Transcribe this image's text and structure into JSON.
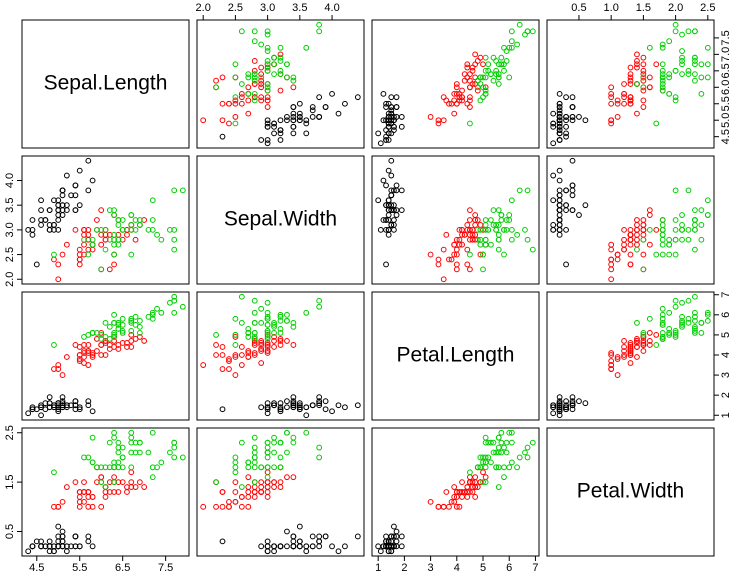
{
  "chart_data": {
    "type": "scatter-matrix",
    "variables": [
      {
        "name": "Sepal.Length",
        "lim": [
          4.156,
          8.044
        ],
        "xticks": [
          4.5,
          5.5,
          6.5,
          7.5
        ],
        "yticks": [
          4.5,
          {
            "value": 5,
            "label": "5.0"
          },
          5.5,
          {
            "value": 6,
            "label": "6.0"
          },
          6.5,
          {
            "value": 7,
            "label": "7.0"
          },
          7.5
        ]
      },
      {
        "name": "Sepal.Width",
        "lim": [
          1.904,
          4.496
        ],
        "xticks": [
          {
            "value": 2,
            "label": "2.0"
          },
          2.5,
          {
            "value": 3,
            "label": "3.0"
          },
          3.5,
          {
            "value": 4,
            "label": "4.0"
          }
        ],
        "yticks": [
          {
            "value": 2,
            "label": "2.0"
          },
          2.5,
          {
            "value": 3,
            "label": "3.0"
          },
          3.5,
          {
            "value": 4,
            "label": "4.0"
          }
        ]
      },
      {
        "name": "Petal.Length",
        "lim": [
          0.764,
          7.136
        ],
        "xticks": [
          1,
          2,
          3,
          4,
          5,
          6,
          7
        ],
        "yticks": [
          1,
          2,
          3,
          4,
          5,
          6,
          7
        ]
      },
      {
        "name": "Petal.Width",
        "lim": [
          0.004,
          2.596
        ],
        "xticks": [
          0.5,
          {
            "value": 1,
            "label": "1.0"
          },
          1.5,
          {
            "value": 2,
            "label": "2.0"
          },
          2.5
        ],
        "yticks": [
          0.5,
          1.5,
          2.5
        ]
      }
    ],
    "series": [
      {
        "color": "#000000",
        "values": [
          [
            5.1,
            4.9,
            4.7,
            4.6,
            5.0,
            5.4,
            4.6,
            5.0,
            4.4,
            4.9,
            5.4,
            4.8,
            4.8,
            4.3,
            5.8,
            5.7,
            5.4,
            5.1,
            5.7,
            5.1,
            5.4,
            5.1,
            4.6,
            5.1,
            4.8,
            5.0,
            5.0,
            5.2,
            5.2,
            4.7,
            4.8,
            5.4,
            5.2,
            5.5,
            4.9,
            5.0,
            5.5,
            4.9,
            4.4,
            5.1,
            5.0,
            4.5,
            4.4,
            5.0,
            5.1,
            4.8,
            5.1,
            4.6,
            5.3,
            5.0
          ],
          [
            3.5,
            3.0,
            3.2,
            3.1,
            3.6,
            3.9,
            3.4,
            3.4,
            2.9,
            3.1,
            3.7,
            3.4,
            3.0,
            3.0,
            4.0,
            4.4,
            3.9,
            3.5,
            3.8,
            3.8,
            3.4,
            3.7,
            3.6,
            3.3,
            3.4,
            3.0,
            3.4,
            3.5,
            3.4,
            3.2,
            3.1,
            3.4,
            4.1,
            4.2,
            3.1,
            3.2,
            3.5,
            3.6,
            3.0,
            3.4,
            3.5,
            2.3,
            3.2,
            3.5,
            3.8,
            3.0,
            3.8,
            3.2,
            3.7,
            3.3
          ],
          [
            1.4,
            1.4,
            1.3,
            1.5,
            1.4,
            1.7,
            1.4,
            1.5,
            1.4,
            1.5,
            1.5,
            1.6,
            1.4,
            1.1,
            1.2,
            1.5,
            1.3,
            1.4,
            1.7,
            1.5,
            1.7,
            1.5,
            1.0,
            1.7,
            1.9,
            1.6,
            1.6,
            1.5,
            1.4,
            1.6,
            1.6,
            1.5,
            1.5,
            1.4,
            1.5,
            1.2,
            1.3,
            1.4,
            1.3,
            1.5,
            1.3,
            1.3,
            1.3,
            1.6,
            1.9,
            1.4,
            1.6,
            1.4,
            1.5,
            1.4
          ],
          [
            0.2,
            0.2,
            0.2,
            0.2,
            0.2,
            0.4,
            0.3,
            0.2,
            0.2,
            0.1,
            0.2,
            0.2,
            0.1,
            0.1,
            0.2,
            0.4,
            0.4,
            0.3,
            0.3,
            0.3,
            0.2,
            0.4,
            0.2,
            0.5,
            0.2,
            0.2,
            0.4,
            0.2,
            0.2,
            0.2,
            0.2,
            0.4,
            0.1,
            0.2,
            0.2,
            0.2,
            0.2,
            0.1,
            0.2,
            0.2,
            0.3,
            0.3,
            0.2,
            0.6,
            0.4,
            0.3,
            0.2,
            0.2,
            0.2,
            0.2
          ]
        ]
      },
      {
        "color": "#ff0000",
        "values": [
          [
            7.0,
            6.4,
            6.9,
            5.5,
            6.5,
            5.7,
            6.3,
            4.9,
            6.6,
            5.2,
            5.0,
            5.9,
            6.0,
            6.1,
            5.6,
            6.7,
            5.6,
            5.8,
            6.2,
            5.6,
            5.9,
            6.1,
            6.3,
            6.1,
            6.4,
            6.6,
            6.8,
            6.7,
            6.0,
            5.7,
            5.5,
            5.5,
            5.8,
            6.0,
            5.4,
            6.0,
            6.7,
            6.3,
            5.6,
            5.5,
            5.5,
            6.1,
            5.8,
            5.0,
            5.6,
            5.7,
            5.7,
            6.2,
            5.1,
            5.7
          ],
          [
            3.2,
            3.2,
            3.1,
            2.3,
            2.8,
            2.8,
            3.3,
            2.4,
            2.9,
            2.7,
            2.0,
            3.0,
            2.2,
            2.9,
            2.9,
            3.1,
            3.0,
            2.7,
            2.2,
            2.5,
            3.2,
            2.8,
            2.5,
            2.8,
            2.9,
            3.0,
            2.8,
            3.0,
            2.9,
            2.6,
            2.4,
            2.4,
            2.7,
            2.7,
            3.0,
            3.4,
            3.1,
            2.3,
            3.0,
            2.5,
            2.6,
            3.0,
            2.6,
            2.3,
            2.7,
            3.0,
            2.9,
            2.9,
            2.5,
            2.8
          ],
          [
            4.7,
            4.5,
            4.9,
            4.0,
            4.6,
            4.5,
            4.7,
            3.3,
            4.6,
            3.9,
            3.5,
            4.2,
            4.0,
            4.7,
            3.6,
            4.4,
            4.5,
            4.1,
            4.5,
            3.9,
            4.8,
            4.0,
            4.9,
            4.7,
            4.3,
            4.4,
            4.8,
            5.0,
            4.5,
            3.5,
            3.8,
            3.7,
            3.9,
            5.1,
            4.5,
            4.5,
            4.7,
            4.4,
            4.1,
            4.0,
            4.4,
            4.6,
            4.0,
            3.3,
            4.2,
            4.2,
            4.2,
            4.3,
            3.0,
            4.1
          ],
          [
            1.4,
            1.5,
            1.5,
            1.3,
            1.5,
            1.3,
            1.6,
            1.0,
            1.3,
            1.4,
            1.0,
            1.5,
            1.0,
            1.4,
            1.3,
            1.4,
            1.5,
            1.0,
            1.5,
            1.1,
            1.8,
            1.3,
            1.5,
            1.2,
            1.3,
            1.4,
            1.4,
            1.7,
            1.5,
            1.0,
            1.1,
            1.0,
            1.2,
            1.6,
            1.5,
            1.6,
            1.5,
            1.3,
            1.3,
            1.3,
            1.2,
            1.4,
            1.2,
            1.0,
            1.3,
            1.2,
            1.3,
            1.3,
            1.1,
            1.3
          ]
        ]
      },
      {
        "color": "#00cd00",
        "values": [
          [
            6.3,
            5.8,
            7.1,
            6.3,
            6.5,
            7.6,
            4.9,
            7.3,
            6.7,
            7.2,
            6.5,
            6.4,
            6.8,
            5.7,
            5.8,
            6.4,
            6.5,
            7.7,
            7.7,
            6.0,
            6.9,
            5.6,
            7.7,
            6.3,
            6.7,
            7.2,
            6.2,
            6.1,
            6.4,
            7.2,
            7.4,
            7.9,
            6.4,
            6.3,
            6.1,
            7.7,
            6.3,
            6.4,
            6.0,
            6.9,
            6.7,
            6.9,
            5.8,
            6.8,
            6.7,
            6.7,
            6.3,
            6.5,
            6.2,
            5.9
          ],
          [
            3.3,
            2.7,
            3.0,
            2.9,
            3.0,
            3.0,
            2.5,
            2.9,
            2.5,
            3.6,
            3.2,
            2.7,
            3.0,
            2.5,
            2.8,
            3.2,
            3.0,
            3.8,
            2.6,
            2.2,
            3.2,
            2.8,
            2.8,
            2.7,
            3.3,
            3.2,
            2.8,
            3.0,
            2.8,
            3.0,
            2.8,
            3.8,
            2.8,
            2.8,
            2.6,
            3.0,
            3.4,
            3.1,
            3.0,
            3.1,
            3.1,
            3.1,
            2.7,
            3.2,
            3.3,
            3.0,
            2.5,
            3.0,
            3.4,
            3.0
          ],
          [
            6.0,
            5.1,
            5.9,
            5.6,
            5.8,
            6.6,
            4.5,
            6.3,
            5.8,
            6.1,
            5.1,
            5.3,
            5.5,
            5.0,
            5.1,
            5.3,
            5.5,
            6.7,
            6.9,
            5.0,
            5.7,
            4.9,
            6.7,
            4.9,
            5.7,
            6.0,
            4.8,
            4.9,
            5.6,
            5.8,
            6.1,
            6.4,
            5.6,
            5.1,
            5.6,
            6.1,
            5.6,
            5.5,
            4.8,
            5.4,
            5.6,
            5.1,
            5.1,
            5.9,
            5.7,
            5.2,
            5.0,
            5.2,
            5.4,
            5.1
          ],
          [
            2.5,
            1.9,
            2.1,
            1.8,
            2.2,
            2.1,
            1.7,
            1.8,
            1.8,
            2.5,
            2.0,
            1.9,
            2.1,
            2.0,
            2.4,
            2.3,
            1.8,
            2.2,
            2.3,
            1.5,
            2.3,
            2.0,
            2.0,
            1.8,
            2.1,
            1.8,
            1.8,
            1.8,
            2.1,
            1.6,
            1.9,
            2.0,
            2.2,
            1.5,
            1.4,
            2.3,
            2.4,
            1.8,
            1.8,
            2.1,
            2.4,
            2.3,
            1.9,
            2.3,
            2.5,
            2.3,
            1.9,
            2.0,
            2.3,
            1.8
          ]
        ]
      }
    ]
  }
}
